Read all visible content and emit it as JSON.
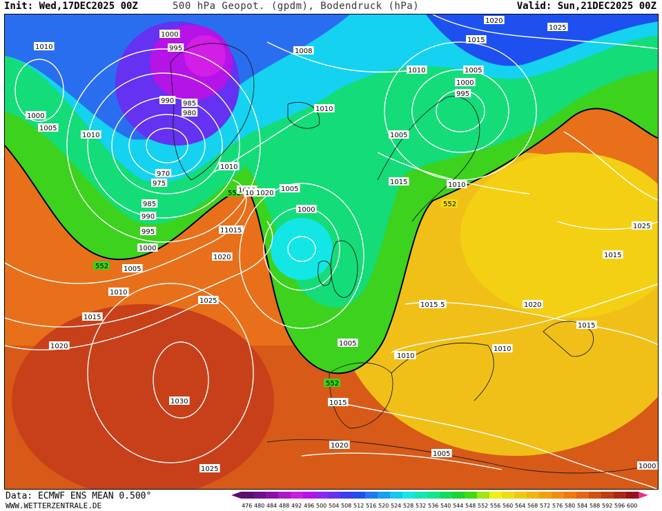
{
  "header": {
    "init": "Init: Wed,17DEC2025 00Z",
    "title": "500 hPa Geopot. (gpdm), Bodendruck (hPa)",
    "valid": "Valid: Sun,21DEC2025 00Z"
  },
  "footer": {
    "data_source": "Data: ECMWF ENS MEAN 0.500°",
    "site": "WWW.WETTERZENTRALE.DE"
  },
  "legend": {
    "values": [
      "476",
      "480",
      "484",
      "488",
      "492",
      "496",
      "500",
      "504",
      "508",
      "512",
      "516",
      "520",
      "524",
      "528",
      "532",
      "536",
      "540",
      "544",
      "548",
      "552",
      "556",
      "560",
      "564",
      "568",
      "572",
      "576",
      "580",
      "584",
      "588",
      "592",
      "596",
      "600"
    ],
    "colors": [
      "#5a0f6e",
      "#6e0f8c",
      "#8a10a8",
      "#a81ac4",
      "#c81ee0",
      "#b414e6",
      "#8c28f0",
      "#6432f0",
      "#3c3cf0",
      "#1e50f0",
      "#1e78f0",
      "#14a0f0",
      "#14c8f0",
      "#14e6e6",
      "#14e6b4",
      "#14e68c",
      "#14dc5a",
      "#1ed232",
      "#3cdc14",
      "#a0e614",
      "#f0f014",
      "#f0dc14",
      "#f0c814",
      "#f0b414",
      "#f0a014",
      "#f08c14",
      "#f07814",
      "#e66414",
      "#d25014",
      "#be3c14",
      "#aa2814",
      "#96141e"
    ]
  },
  "map": {
    "contour_552_label": "552",
    "pressure_labels": [
      "1010",
      "1000",
      "995",
      "990",
      "985",
      "980",
      "970",
      "975",
      "1005",
      "1010",
      "1000",
      "1008",
      "1010",
      "1015",
      "1010",
      "1005",
      "1000",
      "995",
      "1025",
      "1020",
      "1005",
      "1015",
      "1010",
      "1000",
      "1005",
      "1010",
      "1015",
      "552",
      "985",
      "990",
      "995",
      "1000",
      "1005",
      "1010",
      "1015",
      "1020",
      "1025",
      "1030",
      "1025",
      "1020",
      "1015",
      "1010",
      "1005",
      "1015",
      "1020",
      "1015",
      "1010",
      "1015",
      "1020",
      "1025",
      "1015",
      "1005",
      "1000",
      "1010",
      "1015",
      "1020",
      "1015",
      "552",
      "552",
      "552",
      "1010"
    ]
  }
}
